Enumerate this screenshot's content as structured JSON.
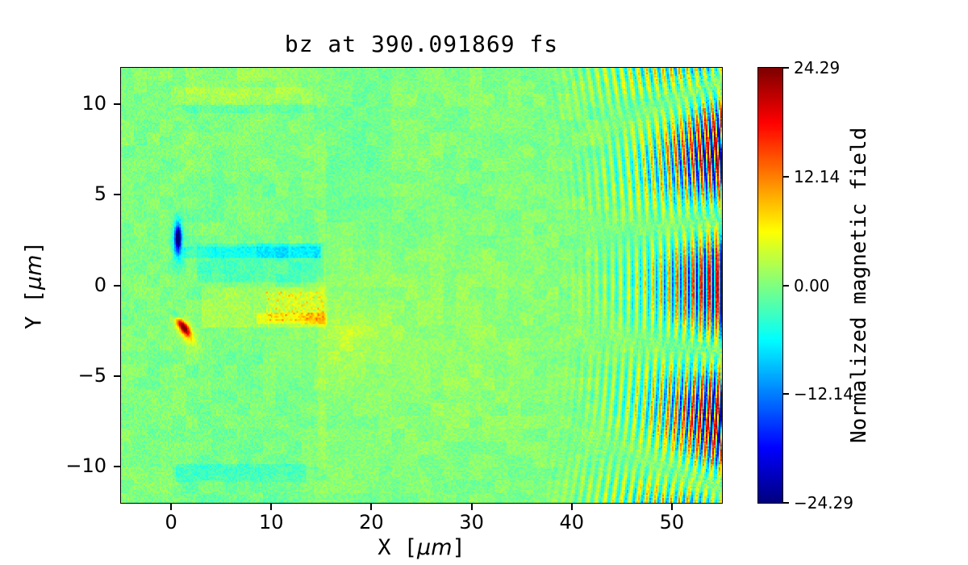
{
  "figure": {
    "title": "bz at 390.091869 fs",
    "xlabel": {
      "pre": "X [",
      "mu": "μm",
      "post": "]"
    },
    "ylabel": {
      "pre": "Y [",
      "mu": "μm",
      "post": "]"
    },
    "background_color": "#ffffff"
  },
  "chart_data": {
    "type": "heatmap",
    "title": "bz at 390.091869 fs",
    "xlabel": "X [μm]",
    "ylabel": "Y [μm]",
    "xlim": [
      -5,
      55
    ],
    "ylim": [
      -12,
      12
    ],
    "xticks": {
      "values": [
        0,
        10,
        20,
        30,
        40,
        50
      ],
      "labels": [
        "0",
        "10",
        "20",
        "30",
        "40",
        "50"
      ]
    },
    "yticks": {
      "values": [
        10,
        5,
        0,
        -5,
        -10
      ],
      "labels": [
        "10",
        "5",
        "0",
        "−5",
        "−10"
      ]
    },
    "grid": false,
    "legend": false,
    "colormap": {
      "name": "jet",
      "stops": [
        "#00007f",
        "#0000ff",
        "#00ffff",
        "#80ff80",
        "#ffff00",
        "#ff0000",
        "#800000"
      ]
    },
    "colorbar": {
      "label": "Normalized magnetic field",
      "position": "right",
      "vmin": -24.29,
      "vmax": 24.29,
      "ticks": {
        "values": [
          24.29,
          12.14,
          0.0,
          -12.14,
          -24.29
        ],
        "labels": [
          "24.29",
          "12.14",
          "0.00",
          "−12.14",
          "−24.29"
        ]
      }
    },
    "description": "Noisy green field near 0; plasma target slab spanning x≈2–15 μm with teal/yellow bands, a dark-blue filament near (0.7, 2.6), a red-orange filament near (1.2, −2.3), and concentric laser wavefronts (λ≈0.8 μm) for r≳36 μm that saturate to deep red/blue at the right edge",
    "noise": {
      "seed": 7,
      "fine_amp": 1.6,
      "blotch_amp": 0.9,
      "blotch_cells": 8
    },
    "waves": {
      "centers": [
        [
          0,
          3
        ],
        [
          0,
          -3
        ]
      ],
      "wavelength": 0.8,
      "r_start": 36,
      "r_full": 55,
      "amp_total": 26,
      "envelope_power": 2.2,
      "jitter": [
        0.8,
        0.4
      ]
    },
    "features": [
      {
        "kind": "rect",
        "name": "target-slab-tint",
        "x0": 2,
        "x1": 15,
        "y0": -10.5,
        "y1": 10.5,
        "v": -0.4
      },
      {
        "kind": "rect",
        "name": "target-top-yellow-band",
        "x0": 0,
        "x1": 14.2,
        "y0": 10.0,
        "y1": 10.9,
        "v": 1.6
      },
      {
        "kind": "rect",
        "name": "target-top-teal-line",
        "x0": 1,
        "x1": 14.5,
        "y0": 9.55,
        "y1": 10.0,
        "v": -1.0
      },
      {
        "kind": "rect",
        "name": "target-upper-warm",
        "x0": 1,
        "x1": 14.5,
        "y0": 6,
        "y1": 9.5,
        "v": 0.5
      },
      {
        "kind": "rect",
        "name": "upper-right-cool-zone",
        "x0": 14.8,
        "x1": 22,
        "y0": 3.5,
        "y1": 12,
        "v": -0.7
      },
      {
        "kind": "rect",
        "name": "bottom-teal-band",
        "x0": 0.5,
        "x1": 13.5,
        "y0": -10.8,
        "y1": -9.9,
        "v": -2.2
      },
      {
        "kind": "rect",
        "name": "bottom-teal-soft",
        "x0": 1,
        "x1": 13,
        "y0": -12,
        "y1": -10.8,
        "v": -0.9
      },
      {
        "kind": "rect",
        "name": "bottom-yellow-speckle",
        "x0": 7.5,
        "x1": 13.5,
        "y0": -11.7,
        "y1": -10.9,
        "v": 1.5,
        "speckle": true
      },
      {
        "kind": "rect",
        "name": "target-right-edge-line",
        "x0": 14.55,
        "x1": 15.35,
        "y0": -10.5,
        "y1": 10.5,
        "v": 1.0
      },
      {
        "kind": "rect",
        "name": "cyan-streak",
        "x0": 1.3,
        "x1": 15,
        "y0": 1.55,
        "y1": 2.15,
        "v": -2.8
      },
      {
        "kind": "rect",
        "name": "cyan-streak-dark",
        "x0": 8.5,
        "x1": 15,
        "y0": 1.5,
        "y1": 2.3,
        "v": -2.0
      },
      {
        "kind": "rect",
        "name": "teal-wash",
        "x0": 2.5,
        "x1": 15.2,
        "y0": 0.15,
        "y1": 2.35,
        "v": -2.0
      },
      {
        "kind": "rect",
        "name": "yellow-wash",
        "x0": 3,
        "x1": 15.6,
        "y0": -2.35,
        "y1": -0.1,
        "v": 2.2
      },
      {
        "kind": "rect",
        "name": "orange-speckle-zone",
        "x0": 9.5,
        "x1": 15.2,
        "y0": -1.95,
        "y1": -0.35,
        "v": 8,
        "speckle": true
      },
      {
        "kind": "rect",
        "name": "orange-line",
        "x0": 8.5,
        "x1": 15.5,
        "y0": -2.1,
        "y1": -1.55,
        "v": 3.5
      },
      {
        "kind": "blob",
        "name": "blue-filament-core",
        "cx": 0.68,
        "cy": 2.6,
        "sx": 0.22,
        "sy": 0.5,
        "rot": 0,
        "amp": -24
      },
      {
        "kind": "blob",
        "name": "blue-filament-halo",
        "cx": 0.72,
        "cy": 2.5,
        "sx": 0.45,
        "sy": 0.95,
        "rot": 0,
        "amp": -7
      },
      {
        "kind": "blob",
        "name": "red-filament-core",
        "cx": 1.25,
        "cy": -2.3,
        "sx": 0.55,
        "sy": 0.2,
        "rot": -35,
        "amp": 22
      },
      {
        "kind": "blob",
        "name": "red-filament-halo",
        "cx": 1.3,
        "cy": -2.4,
        "sx": 0.95,
        "sy": 0.45,
        "rot": -35,
        "amp": 6
      },
      {
        "kind": "blob",
        "name": "cyan-mini-streak",
        "cx": 0.7,
        "cy": -1.72,
        "sx": 0.5,
        "sy": 0.15,
        "rot": -20,
        "amp": -8
      },
      {
        "kind": "blob",
        "name": "yellow-tail",
        "cx": 17.5,
        "cy": -2.8,
        "sx": 2.5,
        "sy": 1.2,
        "rot": 0,
        "amp": 2.2
      },
      {
        "kind": "blob",
        "name": "mid-yellow-wash",
        "cx": 27,
        "cy": -3,
        "sx": 9,
        "sy": 3.5,
        "rot": 0,
        "amp": 1.1
      },
      {
        "kind": "blob",
        "name": "top-yellow-patch",
        "cx": 8,
        "cy": 11.4,
        "sx": 4.5,
        "sy": 0.8,
        "rot": 0,
        "amp": 1.1
      }
    ]
  }
}
